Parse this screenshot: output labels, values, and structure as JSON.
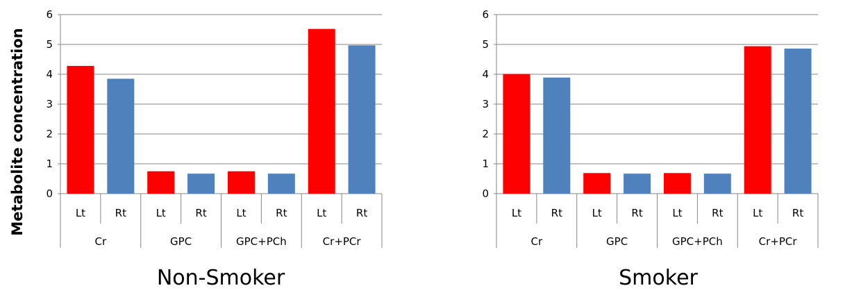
{
  "ylabel": "Metabolite concentration",
  "chart_data": [
    {
      "type": "bar",
      "title": "Non-Smoker",
      "ylabel": "Metabolite concentration",
      "ylim": [
        0,
        6
      ],
      "yticks": [
        0,
        1,
        2,
        3,
        4,
        5,
        6
      ],
      "grid": true,
      "groups": [
        "Cr",
        "GPC",
        "GPC+PCh",
        "Cr+PCr"
      ],
      "subcategories": [
        "Lt",
        "Rt"
      ],
      "categories": [
        "Cr Lt",
        "Cr Rt",
        "GPC Lt",
        "GPC Rt",
        "GPC+PCh Lt",
        "GPC+PCh Rt",
        "Cr+PCr Lt",
        "Cr+PCr Rt"
      ],
      "values": [
        4.28,
        3.85,
        0.75,
        0.67,
        0.75,
        0.67,
        5.52,
        4.97
      ],
      "colors": [
        "#FF0000",
        "#4F81BD"
      ]
    },
    {
      "type": "bar",
      "title": "Smoker",
      "ylim": [
        0,
        6
      ],
      "yticks": [
        0,
        1,
        2,
        3,
        4,
        5,
        6
      ],
      "grid": true,
      "groups": [
        "Cr",
        "GPC",
        "GPC+PCh",
        "Cr+PCr"
      ],
      "subcategories": [
        "Lt",
        "Rt"
      ],
      "categories": [
        "Cr Lt",
        "Cr Rt",
        "GPC Lt",
        "GPC Rt",
        "GPC+PCh Lt",
        "GPC+PCh Rt",
        "Cr+PCr Lt",
        "Cr+PCr Rt"
      ],
      "values": [
        4.01,
        3.89,
        0.69,
        0.67,
        0.69,
        0.67,
        4.94,
        4.86
      ],
      "colors": [
        "#FF0000",
        "#4F81BD"
      ]
    }
  ]
}
